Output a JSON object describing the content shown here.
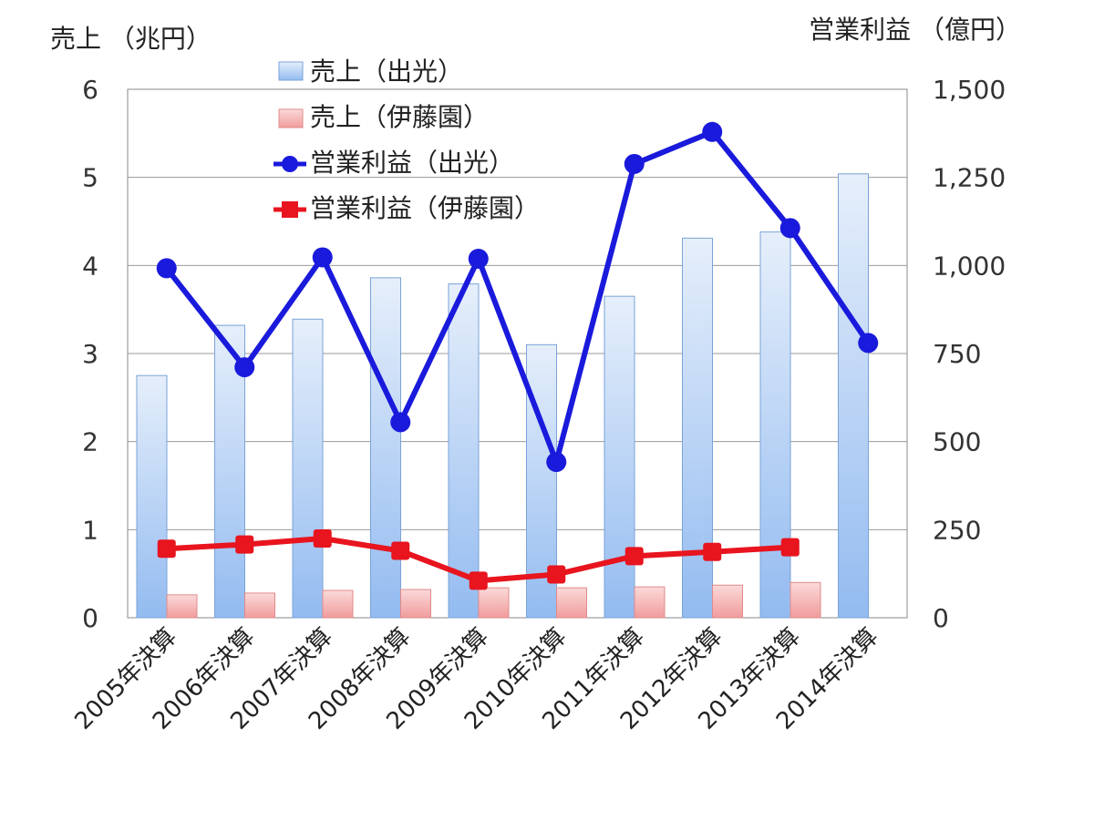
{
  "chart_data": {
    "type": "bar",
    "categories": [
      "2005年決算",
      "2006年決算",
      "2007年決算",
      "2008年決算",
      "2009年決算",
      "2010年決算",
      "2011年決算",
      "2012年決算",
      "2013年決算",
      "2014年決算"
    ],
    "left_axis": {
      "label": "売上 （兆円）",
      "ylim": [
        0,
        6
      ],
      "ticks": [
        "0",
        "1",
        "2",
        "3",
        "4",
        "5",
        "6"
      ]
    },
    "right_axis": {
      "label": "営業利益 （億円）",
      "ylim": [
        0,
        1500
      ],
      "ticks": [
        "0",
        "250",
        "500",
        "750",
        "1,000",
        "1,250",
        "1,500"
      ]
    },
    "grid": true,
    "legend_position": "top-left",
    "series": [
      {
        "name": "売上（出光）",
        "type": "bar",
        "axis": "left",
        "color": "#9dc3f2",
        "values": [
          2.75,
          3.32,
          3.39,
          3.86,
          3.79,
          3.1,
          3.65,
          4.31,
          4.38,
          5.04
        ]
      },
      {
        "name": "売上（伊藤園）",
        "type": "bar",
        "axis": "left",
        "color": "#f4a4a4",
        "values": [
          0.26,
          0.28,
          0.31,
          0.32,
          0.34,
          0.34,
          0.35,
          0.37,
          0.4,
          null
        ]
      },
      {
        "name": "営業利益（出光）",
        "type": "line",
        "axis": "right",
        "color": "#1a1adc",
        "marker": "circle",
        "values": [
          992,
          711,
          1023,
          555,
          1019,
          442,
          1288,
          1379,
          1106,
          780
        ]
      },
      {
        "name": "営業利益（伊藤園）",
        "type": "line",
        "axis": "right",
        "color": "#e8141e",
        "marker": "square",
        "values": [
          196,
          208,
          225,
          190,
          105,
          123,
          175,
          187,
          200,
          null
        ]
      }
    ]
  }
}
